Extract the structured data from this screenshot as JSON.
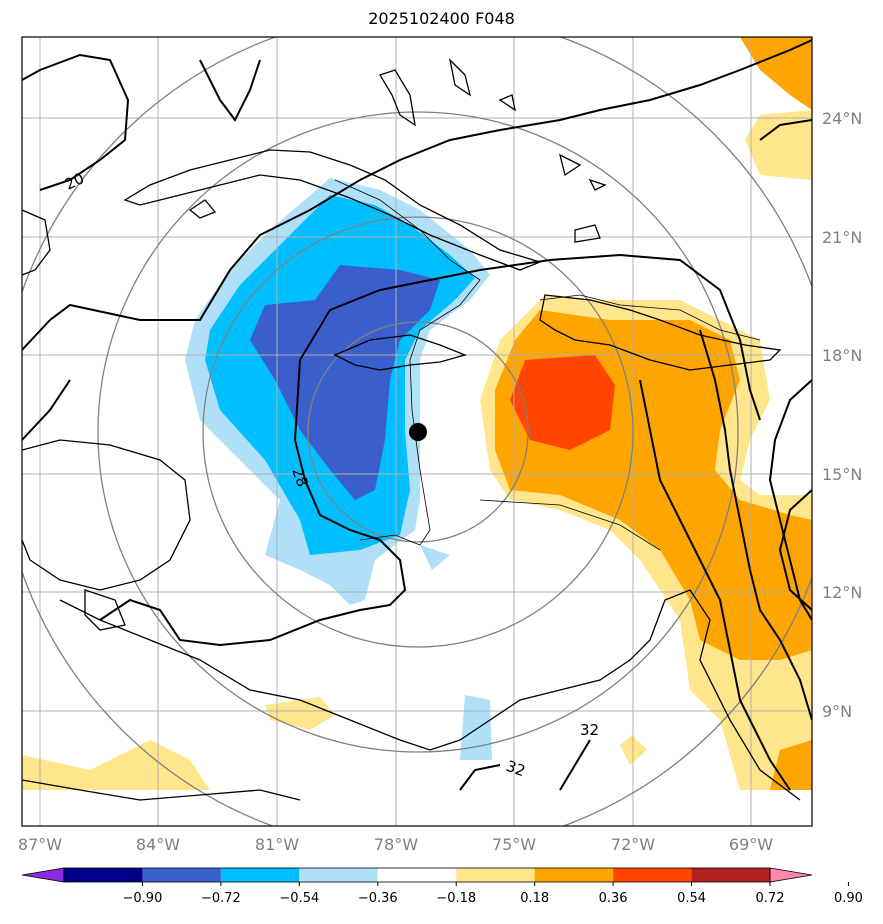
{
  "title": "2025102400 F048",
  "lat_labels": [
    "24°N",
    "21°N",
    "18°N",
    "15°N",
    "12°N",
    "9°N"
  ],
  "lon_labels": [
    "87°W",
    "84°W",
    "81°W",
    "78°W",
    "75°W",
    "72°W",
    "69°W"
  ],
  "colorbar": {
    "ticks": [
      "−0.90",
      "−0.72",
      "−0.54",
      "−0.36",
      "−0.18",
      "0.18",
      "0.36",
      "0.54",
      "0.72",
      "0.90"
    ],
    "colors": [
      "#8a2be2",
      "#00008b",
      "#3a5fcd",
      "#00bfff",
      "#b0e0f8",
      "#ffffff",
      "#ffe68c",
      "#ffa500",
      "#ff4500",
      "#b22222",
      "#ff88aa"
    ]
  },
  "contour_labels": [
    "20",
    "28",
    "32",
    "32"
  ],
  "storm_marker": "center"
}
